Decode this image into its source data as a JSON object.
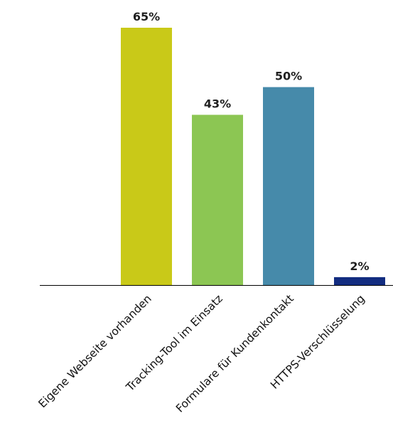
{
  "chart_data": {
    "type": "bar",
    "categories": [
      "Eigene Webseite vorhanden",
      "Tracking-Tool im Einsatz",
      "Formulare für Kundenkontakt",
      "HTTPS-Verschlüsselung"
    ],
    "values": [
      65,
      43,
      50,
      2
    ],
    "value_labels": [
      "65%",
      "43%",
      "50%",
      "2%"
    ],
    "colors": [
      "#c9c918",
      "#8cc653",
      "#468aaa",
      "#122c80"
    ],
    "axis_color": "#000000",
    "ylim": [
      0,
      65
    ],
    "grid": false,
    "legend": "none",
    "title": "",
    "xlabel": "",
    "ylabel": ""
  }
}
